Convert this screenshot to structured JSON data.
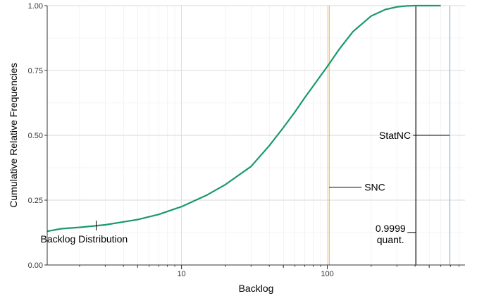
{
  "chart_data": {
    "type": "line",
    "title": "",
    "xlabel": "Backlog",
    "ylabel": "Cumulative Relative Frequencies",
    "x_scale": "log10",
    "xlim": [
      1.2,
      880
    ],
    "ylim": [
      0,
      1
    ],
    "grid": true,
    "x_ticks": [
      {
        "value": 10,
        "label": "10"
      },
      {
        "value": 100,
        "label": "100"
      }
    ],
    "y_ticks": [
      {
        "value": 0,
        "label": "0.00"
      },
      {
        "value": 0.25,
        "label": "0.25"
      },
      {
        "value": 0.5,
        "label": "0.50"
      },
      {
        "value": 0.75,
        "label": "0.75"
      },
      {
        "value": 1,
        "label": "1.00"
      }
    ],
    "series": [
      {
        "color": "#1a9a6c",
        "x": [
          1.2,
          1.5,
          2,
          3,
          5,
          7,
          10,
          15,
          20,
          30,
          40,
          50,
          60,
          70,
          80,
          90,
          100,
          120,
          150,
          200,
          250,
          300,
          350,
          400,
          500,
          600
        ],
        "y": [
          0.13,
          0.14,
          0.145,
          0.155,
          0.175,
          0.195,
          0.225,
          0.27,
          0.31,
          0.38,
          0.46,
          0.53,
          0.59,
          0.645,
          0.69,
          0.73,
          0.765,
          0.83,
          0.9,
          0.96,
          0.985,
          0.995,
          0.999,
          1.0,
          1.0,
          1.0
        ]
      }
    ],
    "vlines": [
      {
        "x": 103,
        "color": "#e8a33a"
      },
      {
        "x": 405,
        "color": "#000000"
      },
      {
        "x": 690,
        "color": "#7fb2e5"
      }
    ],
    "annotations": [
      {
        "text": "Backlog Distribution",
        "x": 2.6,
        "y": 0.155
      },
      {
        "text": "SNC",
        "x": 103,
        "y": 0.3
      },
      {
        "text": "StatNC",
        "x": 690,
        "y": 0.5
      },
      {
        "text": "0.9999",
        "x": 405,
        "y": 0.12
      },
      {
        "text": "quant.",
        "x": 405,
        "y": 0.07
      }
    ]
  }
}
